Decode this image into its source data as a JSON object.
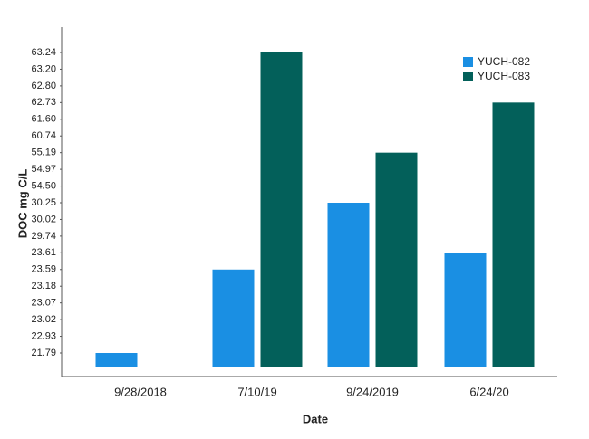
{
  "chart_data": {
    "type": "bar",
    "x_label": "Date",
    "y_label": "DOC mg C/L",
    "categories": [
      "9/28/2018",
      "7/10/19",
      "9/24/2019",
      "6/24/20"
    ],
    "series": [
      {
        "name": "YUCH-082",
        "color": "#1a8fe3",
        "values": [
          21.79,
          23.59,
          30.25,
          23.61
        ]
      },
      {
        "name": "YUCH-083",
        "color": "#03605a",
        "values": [
          null,
          63.24,
          55.19,
          62.73
        ]
      }
    ],
    "yticks": [
      21.79,
      22.93,
      23.02,
      23.07,
      23.18,
      23.59,
      23.61,
      29.74,
      30.02,
      30.25,
      {
        "value": 54.5,
        "label": "54.50"
      },
      54.97,
      55.19,
      60.74,
      {
        "value": 61.6,
        "label": "61.60"
      },
      62.73,
      {
        "value": 62.8,
        "label": "62.80"
      },
      {
        "value": 63.2,
        "label": "63.20"
      },
      63.24
    ],
    "legend": "top-right",
    "grid": false
  }
}
